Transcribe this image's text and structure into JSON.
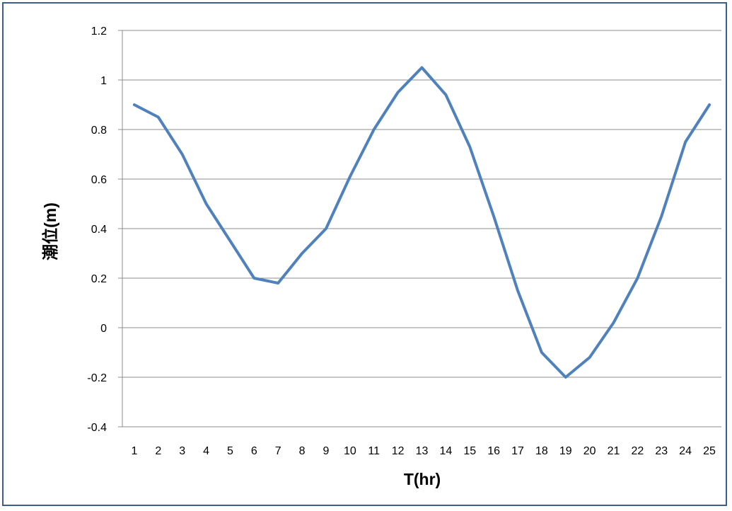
{
  "chart_data": {
    "type": "line",
    "title": "",
    "xlabel": "T(hr)",
    "ylabel": "潮位(m)",
    "categories": [
      "1",
      "2",
      "3",
      "4",
      "5",
      "6",
      "7",
      "8",
      "9",
      "10",
      "11",
      "12",
      "13",
      "14",
      "15",
      "16",
      "17",
      "18",
      "19",
      "20",
      "21",
      "22",
      "23",
      "24",
      "25"
    ],
    "series": [
      {
        "values": [
          0.9,
          0.85,
          0.7,
          0.5,
          0.35,
          0.2,
          0.18,
          0.3,
          0.4,
          0.61,
          0.8,
          0.95,
          1.05,
          0.94,
          0.73,
          0.45,
          0.15,
          -0.1,
          -0.2,
          -0.12,
          0.02,
          0.2,
          0.45,
          0.75,
          0.9
        ],
        "color": "#4f81bd"
      }
    ],
    "ylim": [
      -0.4,
      1.2
    ],
    "yticks": [
      "1.2",
      "1",
      "0.8",
      "0.6",
      "0.4",
      "0.2",
      "0",
      "-0.2",
      "-0.4"
    ],
    "grid": true,
    "legend": "none"
  }
}
